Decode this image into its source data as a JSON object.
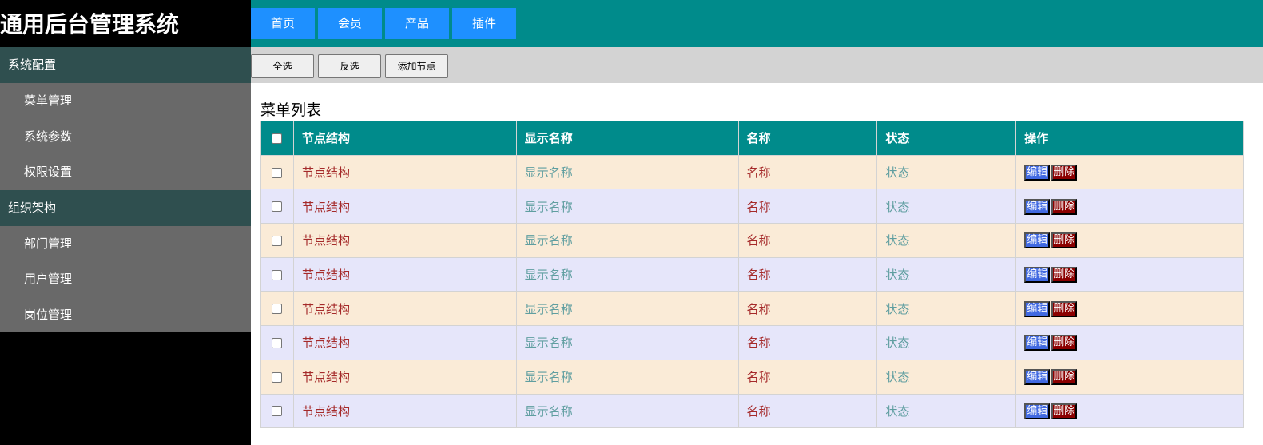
{
  "app_title": "通用后台管理系统",
  "sidebar": {
    "groups": [
      {
        "label": "系统配置",
        "items": [
          "菜单管理",
          "系统参数",
          "权限设置"
        ]
      },
      {
        "label": "组织架构",
        "items": [
          "部门管理",
          "用户管理",
          "岗位管理"
        ]
      }
    ]
  },
  "nav": [
    "首页",
    "会员",
    "产品",
    "插件"
  ],
  "toolbar": [
    "全选",
    "反选",
    "添加节点"
  ],
  "table": {
    "caption": "菜单列表",
    "headers": [
      "节点结构",
      "显示名称",
      "名称",
      "状态",
      "操作"
    ],
    "rows": [
      [
        "节点结构",
        "显示名称",
        "名称",
        "状态"
      ],
      [
        "节点结构",
        "显示名称",
        "名称",
        "状态"
      ],
      [
        "节点结构",
        "显示名称",
        "名称",
        "状态"
      ],
      [
        "节点结构",
        "显示名称",
        "名称",
        "状态"
      ],
      [
        "节点结构",
        "显示名称",
        "名称",
        "状态"
      ],
      [
        "节点结构",
        "显示名称",
        "名称",
        "状态"
      ],
      [
        "节点结构",
        "显示名称",
        "名称",
        "状态"
      ],
      [
        "节点结构",
        "显示名称",
        "名称",
        "状态"
      ]
    ],
    "edit_label": "编辑",
    "delete_label": "删除"
  },
  "colors": {
    "header": "#008b8b",
    "nav_button": "#1e90ff",
    "row_odd": "#faebd7",
    "row_even": "#e6e6fa",
    "edit": "#4169e1",
    "delete": "#8b0000"
  }
}
